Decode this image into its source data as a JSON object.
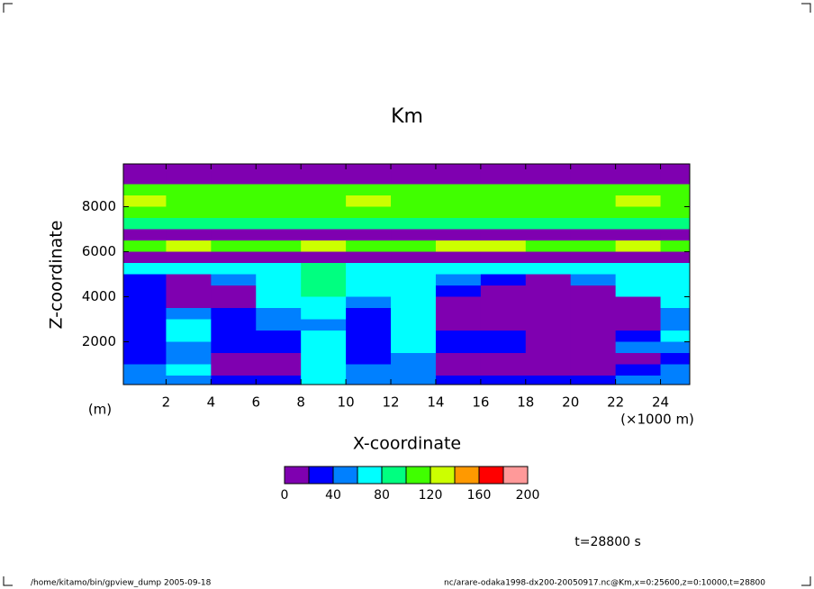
{
  "chart_data": {
    "type": "heatmap",
    "title": "Km",
    "x_label": "X-coordinate",
    "y_label": "Z-coordinate",
    "x_unit": "(×1000 m)",
    "y_unit": "(m)",
    "x_edges": [
      0,
      2,
      4,
      6,
      8,
      10,
      12,
      14,
      16,
      18,
      20,
      22,
      24,
      26
    ],
    "y_edges": [
      10000,
      9500,
      9000,
      8500,
      8000,
      7500,
      7000,
      6500,
      6000,
      5500,
      5000,
      4500,
      4000,
      3500,
      3000,
      2500,
      2000,
      1500,
      1000,
      500,
      0
    ],
    "values": [
      [
        10,
        10,
        10,
        10,
        10,
        10,
        10,
        10,
        10,
        10,
        10,
        10,
        10
      ],
      [
        10,
        10,
        10,
        10,
        10,
        10,
        10,
        10,
        10,
        10,
        10,
        10,
        10
      ],
      [
        110,
        110,
        110,
        110,
        110,
        110,
        110,
        110,
        110,
        110,
        110,
        110,
        110
      ],
      [
        120,
        110,
        110,
        110,
        110,
        130,
        110,
        110,
        110,
        110,
        110,
        120,
        110
      ],
      [
        110,
        115,
        110,
        110,
        110,
        110,
        110,
        110,
        110,
        110,
        110,
        110,
        115
      ],
      [
        90,
        90,
        90,
        90,
        90,
        90,
        90,
        90,
        90,
        90,
        90,
        90,
        90
      ],
      [
        10,
        10,
        10,
        10,
        10,
        10,
        10,
        10,
        10,
        10,
        10,
        10,
        10
      ],
      [
        110,
        120,
        110,
        110,
        120,
        110,
        110,
        130,
        120,
        110,
        110,
        120,
        110
      ],
      [
        15,
        15,
        15,
        15,
        15,
        15,
        15,
        15,
        15,
        15,
        15,
        15,
        15
      ],
      [
        70,
        70,
        60,
        70,
        80,
        70,
        70,
        60,
        70,
        70,
        60,
        70,
        70
      ],
      [
        20,
        15,
        50,
        70,
        80,
        70,
        60,
        50,
        20,
        15,
        40,
        60,
        70
      ],
      [
        30,
        10,
        10,
        60,
        80,
        60,
        70,
        30,
        10,
        10,
        10,
        60,
        70
      ],
      [
        30,
        10,
        15,
        60,
        70,
        40,
        70,
        10,
        10,
        10,
        10,
        15,
        60
      ],
      [
        20,
        50,
        20,
        50,
        60,
        30,
        60,
        10,
        10,
        10,
        10,
        10,
        50
      ],
      [
        30,
        60,
        30,
        40,
        50,
        20,
        70,
        10,
        10,
        10,
        10,
        15,
        50
      ],
      [
        20,
        60,
        30,
        20,
        60,
        20,
        70,
        20,
        30,
        10,
        10,
        30,
        60
      ],
      [
        20,
        40,
        30,
        20,
        70,
        30,
        60,
        30,
        30,
        15,
        15,
        40,
        50
      ],
      [
        30,
        50,
        10,
        15,
        70,
        30,
        50,
        10,
        10,
        10,
        10,
        15,
        30
      ],
      [
        40,
        60,
        10,
        10,
        70,
        40,
        40,
        10,
        10,
        10,
        15,
        30,
        40
      ],
      [
        50,
        40,
        30,
        30,
        70,
        40,
        40,
        30,
        30,
        30,
        30,
        40,
        40
      ]
    ],
    "xlim": [
      0.1,
      25.3
    ],
    "ylim": [
      100,
      9900
    ],
    "xticks": [
      2,
      4,
      6,
      8,
      10,
      12,
      14,
      16,
      18,
      20,
      22,
      24
    ],
    "yticks": [
      2000,
      4000,
      6000,
      8000
    ],
    "levels": [
      0,
      20,
      40,
      60,
      80,
      100,
      120,
      140,
      160,
      180,
      200
    ],
    "level_colors": [
      "#7f00b0",
      "#0000ff",
      "#0080ff",
      "#00ffff",
      "#00ff80",
      "#40ff00",
      "#ccff00",
      "#ff9900",
      "#ff0000",
      "#ff9999"
    ],
    "colorbar_ticks": [
      0,
      40,
      80,
      120,
      160,
      200
    ],
    "time_label": "t=28800 s",
    "footer_left": "/home/kitamo/bin/gpview_dump  2005-09-18",
    "footer_right": "nc/arare-odaka1998-dx200-20050917.nc@Km,x=0:25600,z=0:10000,t=28800"
  }
}
